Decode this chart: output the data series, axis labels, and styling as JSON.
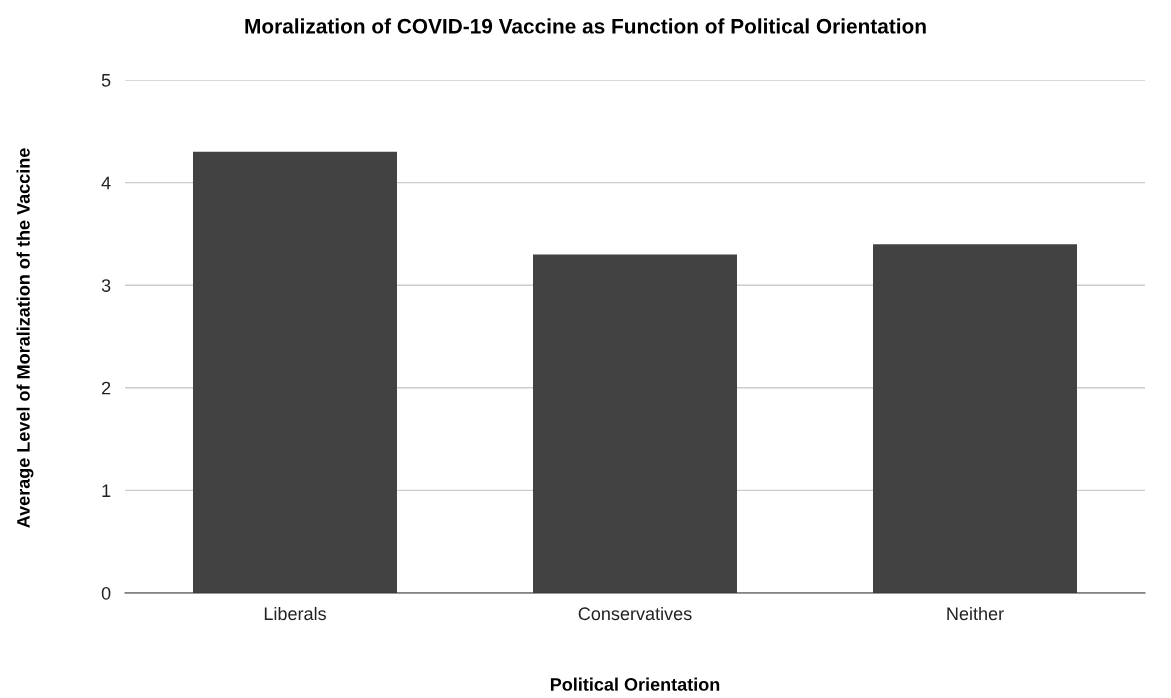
{
  "chart_data": {
    "type": "bar",
    "title": "Moralization of COVID-19 Vaccine as Function of Political Orientation",
    "xlabel": "Political Orientation",
    "ylabel": "Average Level of Moralization of the Vaccine",
    "categories": [
      "Liberals",
      "Conservatives",
      "Neither"
    ],
    "values": [
      4.3,
      3.3,
      3.4
    ],
    "color": "#424242",
    "ylim": [
      0,
      5
    ],
    "yticks": [
      0,
      1,
      2,
      3,
      4,
      5
    ],
    "grid": "y",
    "legend": false
  }
}
